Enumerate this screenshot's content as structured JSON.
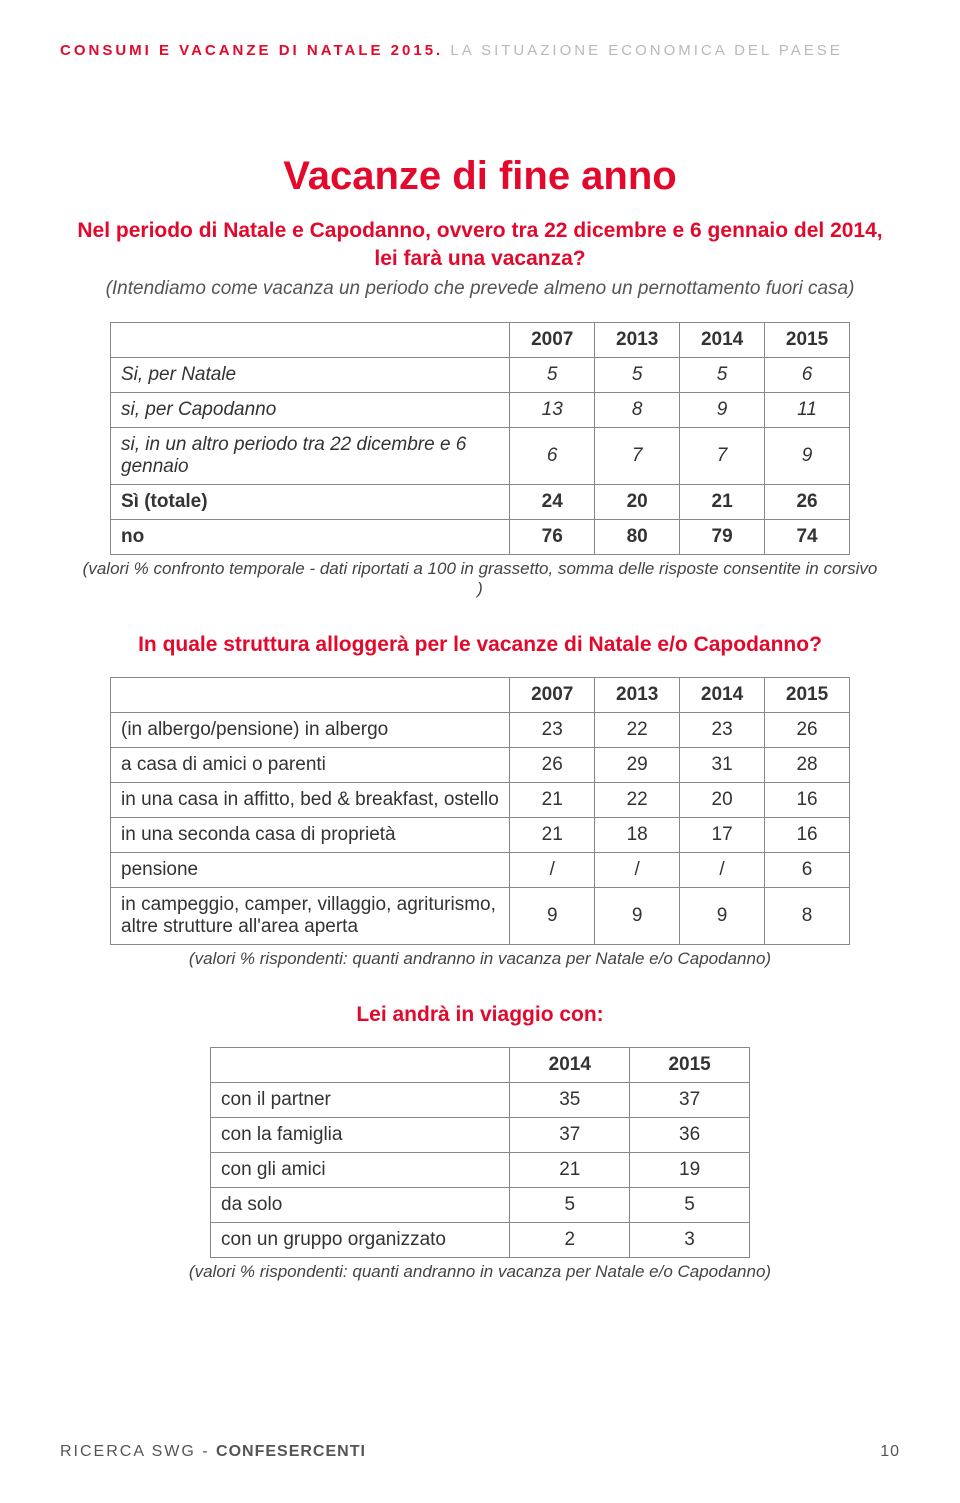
{
  "header": {
    "red": "CONSUMI E VACANZE DI NATALE 2015.",
    "grey": "LA SITUAZIONE ECONOMICA DEL PAESE"
  },
  "main_title": "Vacanze di fine anno",
  "q1": {
    "text": "Nel periodo di Natale e Capodanno, ovvero tra 22 dicembre e 6 gennaio del 2014, lei farà una vacanza?",
    "explain": "(Intendiamo come vacanza un periodo che prevede almeno un pernottamento fuori casa)",
    "years": [
      "2007",
      "2013",
      "2014",
      "2015"
    ],
    "rows": [
      {
        "label": "Si, per Natale",
        "vals": [
          "5",
          "5",
          "5",
          "6"
        ],
        "italic": true
      },
      {
        "label": "si, per Capodanno",
        "vals": [
          "13",
          "8",
          "9",
          "11"
        ],
        "italic": true
      },
      {
        "label": "si, in un altro periodo tra 22 dicembre e 6 gennaio",
        "vals": [
          "6",
          "7",
          "7",
          "9"
        ],
        "italic": true
      },
      {
        "label": "Sì (totale)",
        "vals": [
          "24",
          "20",
          "21",
          "26"
        ],
        "bold": true
      },
      {
        "label": "no",
        "vals": [
          "76",
          "80",
          "79",
          "74"
        ],
        "bold": true
      }
    ],
    "note": "(valori % confronto temporale -  dati riportati a 100 in grassetto, somma delle risposte consentite in corsivo  )"
  },
  "q2": {
    "text": "In quale struttura alloggerà per le vacanze di Natale e/o Capodanno?",
    "years": [
      "2007",
      "2013",
      "2014",
      "2015"
    ],
    "rows": [
      {
        "label": "(in albergo/pensione) in albergo",
        "vals": [
          "23",
          "22",
          "23",
          "26"
        ]
      },
      {
        "label": "a casa di amici o parenti",
        "vals": [
          "26",
          "29",
          "31",
          "28"
        ]
      },
      {
        "label": "in una casa in affitto, bed & breakfast, ostello",
        "vals": [
          "21",
          "22",
          "20",
          "16"
        ]
      },
      {
        "label": "in una seconda casa di proprietà",
        "vals": [
          "21",
          "18",
          "17",
          "16"
        ]
      },
      {
        "label": "pensione",
        "vals": [
          "/",
          "/",
          "/",
          "6"
        ]
      },
      {
        "label": "in campeggio, camper, villaggio, agriturismo, altre strutture all'area aperta",
        "vals": [
          "9",
          "9",
          "9",
          "8"
        ]
      }
    ],
    "note": "(valori % rispondenti:  quanti andranno in vacanza per Natale e/o Capodanno)"
  },
  "q3": {
    "text": "Lei andrà in viaggio con:",
    "years": [
      "2014",
      "2015"
    ],
    "rows": [
      {
        "label": "con il partner",
        "vals": [
          "35",
          "37"
        ]
      },
      {
        "label": "con la famiglia",
        "vals": [
          "37",
          "36"
        ]
      },
      {
        "label": "con gli amici",
        "vals": [
          "21",
          "19"
        ]
      },
      {
        "label": "da solo",
        "vals": [
          "5",
          "5"
        ]
      },
      {
        "label": "con un gruppo organizzato",
        "vals": [
          "2",
          "3"
        ]
      }
    ],
    "note": "(valori % rispondenti:  quanti andranno in vacanza per Natale e/o Capodanno)"
  },
  "footer": {
    "left_plain": "RICERCA SWG - ",
    "left_bold": "CONFESERCENTI",
    "page": "10"
  },
  "style": {
    "accent": "#e3092c",
    "grey": "#b9b9b9",
    "text": "#333333",
    "border": "#888888",
    "bg": "#ffffff",
    "title_fontsize": 40,
    "question_fontsize": 21,
    "body_fontsize": 19,
    "note_fontsize": 17,
    "header_fontsize": 15
  }
}
